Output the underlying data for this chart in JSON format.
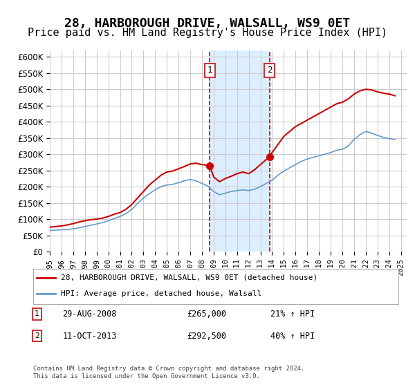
{
  "title": "28, HARBOROUGH DRIVE, WALSALL, WS9 0ET",
  "subtitle": "Price paid vs. HM Land Registry's House Price Index (HPI)",
  "title_fontsize": 13,
  "subtitle_fontsize": 11,
  "red_label": "28, HARBOROUGH DRIVE, WALSALL, WS9 0ET (detached house)",
  "blue_label": "HPI: Average price, detached house, Walsall",
  "annotation1_date": "29-AUG-2008",
  "annotation1_price": "£265,000",
  "annotation1_hpi": "21% ↑ HPI",
  "annotation2_date": "11-OCT-2013",
  "annotation2_price": "£292,500",
  "annotation2_hpi": "40% ↑ HPI",
  "footnote": "Contains HM Land Registry data © Crown copyright and database right 2024.\nThis data is licensed under the Open Government Licence v3.0.",
  "ylim": [
    0,
    620000
  ],
  "yticks": [
    0,
    50000,
    100000,
    150000,
    200000,
    250000,
    300000,
    350000,
    400000,
    450000,
    500000,
    550000,
    600000
  ],
  "marker1_x": 2008.667,
  "marker1_y": 265000,
  "marker2_x": 2013.79,
  "marker2_y": 292500,
  "vline1_x": 2008.667,
  "vline2_x": 2013.79,
  "shade_xmin": 2008.667,
  "shade_xmax": 2013.79,
  "red_color": "#cc0000",
  "blue_color": "#6699cc",
  "background_color": "#ffffff",
  "grid_color": "#cccccc",
  "shade_color": "#ddeeff",
  "vline_color": "#cc0000",
  "xmin": 1995,
  "xmax": 2025.5,
  "red_data_x": [
    1995.0,
    1995.5,
    1996.0,
    1996.5,
    1997.0,
    1997.5,
    1998.0,
    1998.5,
    1999.0,
    1999.5,
    2000.0,
    2000.5,
    2001.0,
    2001.5,
    2002.0,
    2002.5,
    2003.0,
    2003.5,
    2004.0,
    2004.5,
    2005.0,
    2005.5,
    2006.0,
    2006.5,
    2007.0,
    2007.5,
    2008.0,
    2008.667,
    2009.0,
    2009.5,
    2010.0,
    2010.5,
    2011.0,
    2011.5,
    2012.0,
    2012.5,
    2013.0,
    2013.79,
    2014.0,
    2014.5,
    2015.0,
    2015.5,
    2016.0,
    2016.5,
    2017.0,
    2017.5,
    2018.0,
    2018.5,
    2019.0,
    2019.5,
    2020.0,
    2020.5,
    2021.0,
    2021.5,
    2022.0,
    2022.5,
    2023.0,
    2023.5,
    2024.0,
    2024.5
  ],
  "red_data_y": [
    75000,
    77000,
    79000,
    82000,
    86000,
    91000,
    95000,
    98000,
    100000,
    103000,
    108000,
    115000,
    120000,
    130000,
    145000,
    165000,
    185000,
    205000,
    220000,
    235000,
    245000,
    248000,
    255000,
    262000,
    270000,
    272000,
    268000,
    265000,
    230000,
    215000,
    225000,
    232000,
    240000,
    245000,
    240000,
    252000,
    268000,
    292500,
    305000,
    330000,
    355000,
    370000,
    385000,
    395000,
    405000,
    415000,
    425000,
    435000,
    445000,
    455000,
    460000,
    470000,
    485000,
    495000,
    500000,
    498000,
    492000,
    488000,
    485000,
    480000
  ],
  "blue_data_x": [
    1995.0,
    1995.5,
    1996.0,
    1996.5,
    1997.0,
    1997.5,
    1998.0,
    1998.5,
    1999.0,
    1999.5,
    2000.0,
    2000.5,
    2001.0,
    2001.5,
    2002.0,
    2002.5,
    2003.0,
    2003.5,
    2004.0,
    2004.5,
    2005.0,
    2005.5,
    2006.0,
    2006.5,
    2007.0,
    2007.5,
    2008.0,
    2008.5,
    2009.0,
    2009.5,
    2010.0,
    2010.5,
    2011.0,
    2011.5,
    2012.0,
    2012.5,
    2013.0,
    2013.5,
    2014.0,
    2014.5,
    2015.0,
    2015.5,
    2016.0,
    2016.5,
    2017.0,
    2017.5,
    2018.0,
    2018.5,
    2019.0,
    2019.5,
    2020.0,
    2020.5,
    2021.0,
    2021.5,
    2022.0,
    2022.5,
    2023.0,
    2023.5,
    2024.0,
    2024.5
  ],
  "blue_data_y": [
    65000,
    66000,
    67000,
    68000,
    70000,
    73000,
    77000,
    81000,
    85000,
    89000,
    95000,
    102000,
    108000,
    117000,
    130000,
    148000,
    165000,
    178000,
    190000,
    200000,
    205000,
    207000,
    212000,
    218000,
    222000,
    218000,
    210000,
    202000,
    185000,
    175000,
    180000,
    185000,
    188000,
    190000,
    188000,
    192000,
    200000,
    210000,
    220000,
    235000,
    248000,
    258000,
    268000,
    278000,
    285000,
    290000,
    295000,
    300000,
    305000,
    312000,
    315000,
    325000,
    345000,
    360000,
    370000,
    365000,
    358000,
    352000,
    348000,
    345000
  ]
}
